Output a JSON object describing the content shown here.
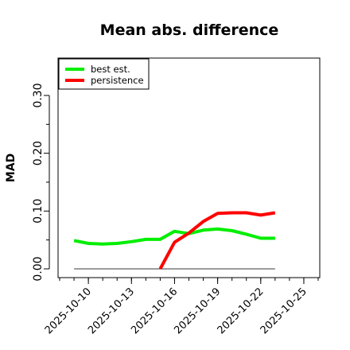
{
  "chart_data": {
    "type": "line",
    "title": "Mean abs. difference",
    "xlabel": "",
    "ylabel": "MAD",
    "ylim": [
      0,
      0.33
    ],
    "xlim": [
      "2025-10-08",
      "2025-10-26"
    ],
    "x_ticks": [
      "2025-10-10",
      "2025-10-13",
      "2025-10-16",
      "2025-10-19",
      "2025-10-22",
      "2025-10-25"
    ],
    "y_ticks": [
      0.0,
      0.1,
      0.2,
      0.3
    ],
    "y_ticks_labeled": [
      "0.00",
      "0.10",
      "0.20",
      "0.30"
    ],
    "grid": false,
    "legend_position": "top-left",
    "reference_line": {
      "y": 0,
      "from": "2025-10-09",
      "to": "2025-10-23",
      "color": "#606060"
    },
    "series": [
      {
        "name": "best est.",
        "color": "#00ee00",
        "points": [
          [
            "2025-10-09",
            0.049
          ],
          [
            "2025-10-10",
            0.044
          ],
          [
            "2025-10-11",
            0.043
          ],
          [
            "2025-10-12",
            0.044
          ],
          [
            "2025-10-13",
            0.047
          ],
          [
            "2025-10-14",
            0.051
          ],
          [
            "2025-10-15",
            0.051
          ],
          [
            "2025-10-16",
            0.065
          ],
          [
            "2025-10-17",
            0.061
          ],
          [
            "2025-10-18",
            0.067
          ],
          [
            "2025-10-19",
            0.069
          ],
          [
            "2025-10-20",
            0.066
          ],
          [
            "2025-10-21",
            0.06
          ],
          [
            "2025-10-22",
            0.053
          ],
          [
            "2025-10-23",
            0.053
          ]
        ]
      },
      {
        "name": "persistence",
        "color": "#ff0000",
        "points": [
          [
            "2025-10-15",
            0.0
          ],
          [
            "2025-10-16",
            0.046
          ],
          [
            "2025-10-17",
            0.062
          ],
          [
            "2025-10-18",
            0.082
          ],
          [
            "2025-10-19",
            0.096
          ],
          [
            "2025-10-20",
            0.097
          ],
          [
            "2025-10-21",
            0.097
          ],
          [
            "2025-10-22",
            0.093
          ],
          [
            "2025-10-23",
            0.097
          ]
        ]
      }
    ]
  }
}
